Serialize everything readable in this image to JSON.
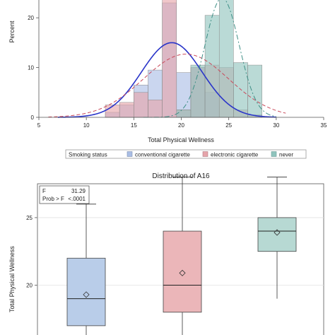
{
  "colors": {
    "conventional": "#a9bde5",
    "electronic": "#e6a4aa",
    "never": "#8fc4bd",
    "overlap_conv_elec": "#c3a7bf",
    "overlap_elec_never": "#b9a9a1",
    "overlap_all": "#a6a09a",
    "overlap_conv_never": "#9cb8c8",
    "normal_curve": "#2a35c9",
    "kernel_curve": "#c9495a",
    "never_curve": "#3e8f86",
    "box_conventional": "#b9cde9",
    "box_electronic": "#ebb6b9",
    "box_never": "#b7d9d3"
  },
  "chart_data": [
    {
      "type": "bar",
      "subtype": "overlaid-histogram",
      "title": "",
      "xlabel": "Total Physical Wellness",
      "ylabel": "Percent",
      "xlim": [
        5,
        35
      ],
      "ylim": [
        0,
        24
      ],
      "xticks": [
        5,
        10,
        15,
        20,
        25,
        30,
        35
      ],
      "yticks": [
        0,
        10,
        20
      ],
      "bin_width": 1.5,
      "legend": {
        "title": "Smoking status",
        "position": "bottom",
        "entries": [
          "conventional cigarette",
          "electronic cigarette",
          "never"
        ]
      },
      "series": [
        {
          "name": "conventional cigarette",
          "bins": [
            [
              12,
              1
            ],
            [
              13.5,
              2.5
            ],
            [
              15,
              6.5
            ],
            [
              16.5,
              9.5
            ],
            [
              18,
              23
            ],
            [
              19.5,
              9
            ],
            [
              21,
              10
            ],
            [
              22.5,
              5
            ]
          ]
        },
        {
          "name": "electronic cigarette",
          "bins": [
            [
              12,
              2.5
            ],
            [
              13.5,
              3
            ],
            [
              15,
              5
            ],
            [
              16.5,
              3.5
            ],
            [
              18,
              24
            ],
            [
              19.5,
              1.5
            ],
            [
              21,
              10
            ],
            [
              22.5,
              10.5
            ],
            [
              24,
              10
            ],
            [
              25.5,
              1.5
            ],
            [
              27,
              0.5
            ]
          ]
        },
        {
          "name": "never",
          "bins": [
            [
              19.5,
              1.5
            ],
            [
              21,
              10.5
            ],
            [
              22.5,
              20.5
            ],
            [
              24,
              24
            ],
            [
              25.5,
              11
            ],
            [
              27,
              10.5
            ]
          ]
        }
      ],
      "curves": [
        {
          "name": "conventional cigarette",
          "mean": 19,
          "sd": 3.2,
          "peak": 15,
          "style": "solid"
        },
        {
          "name": "electronic cigarette",
          "mean": 20.5,
          "sd": 4.5,
          "peak": 12.7,
          "style": "dashed"
        },
        {
          "name": "never",
          "mean": 24.3,
          "sd": 1.8,
          "peak": 24,
          "style": "dashdot"
        }
      ]
    },
    {
      "type": "box",
      "title": "Distribution of A16",
      "ylabel": "Total Physical Wellness",
      "ylim": [
        16,
        28.5
      ],
      "yticks": [
        20,
        25
      ],
      "stats_box": {
        "line1_label": "F",
        "line1_value": "31.29",
        "line2_label": "Prob > F",
        "line2_value": "<.0001"
      },
      "groups": [
        {
          "name": "conventional cigarette",
          "min": 16,
          "q1": 17,
          "median": 19,
          "q3": 22,
          "max": 26,
          "mean": 19.3
        },
        {
          "name": "electronic cigarette",
          "min": 16,
          "q1": 18,
          "median": 20,
          "q3": 24,
          "max": 28,
          "mean": 20.9
        },
        {
          "name": "never",
          "min": 19,
          "q1": 22.5,
          "median": 24,
          "q3": 25,
          "max": 28,
          "mean": 23.9
        }
      ]
    }
  ]
}
